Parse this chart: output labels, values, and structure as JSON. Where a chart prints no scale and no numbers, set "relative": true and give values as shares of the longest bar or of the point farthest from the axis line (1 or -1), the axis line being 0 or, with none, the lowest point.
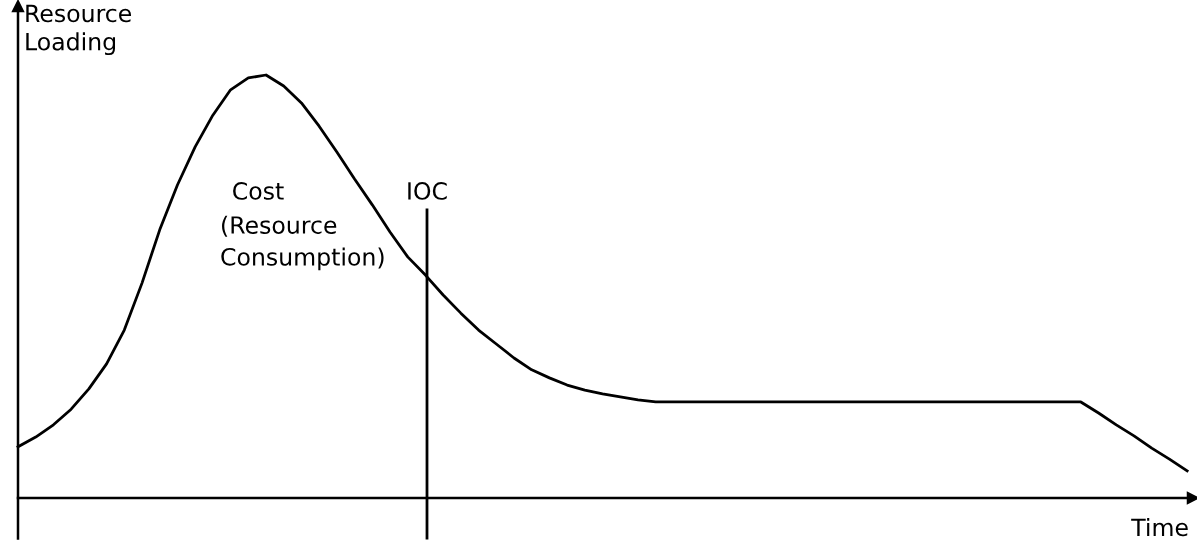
{
  "chart_data": {
    "type": "line",
    "relative": true,
    "xlabel": "Time",
    "ylabel": "Resource\nLoading",
    "categories": [
      null,
      null,
      null,
      null,
      null,
      null,
      null,
      null,
      null,
      null,
      null,
      null,
      null,
      null,
      null,
      null,
      null,
      null,
      null,
      null,
      null,
      null,
      null,
      null,
      null,
      null,
      null,
      null,
      null,
      null,
      null,
      null,
      null,
      null,
      null,
      null,
      null,
      null,
      null,
      null,
      null,
      null,
      null,
      null,
      null,
      null,
      null,
      null,
      null,
      null,
      null,
      null,
      null,
      null,
      null,
      null,
      null,
      null,
      null,
      null,
      null,
      null,
      null,
      null,
      null,
      null,
      null
    ],
    "series": [
      {
        "color": "#000000",
        "values": [
          0.121,
          0.144,
          0.173,
          0.21,
          0.258,
          0.317,
          0.397,
          0.508,
          0.634,
          0.74,
          0.83,
          0.905,
          0.965,
          0.993,
          1.0,
          0.974,
          0.934,
          0.879,
          0.818,
          0.754,
          0.693,
          0.629,
          0.57,
          0.527,
          0.48,
          0.437,
          0.397,
          0.364,
          0.331,
          0.303,
          0.284,
          0.267,
          0.255,
          0.246,
          0.239,
          0.232,
          0.227,
          0.227,
          0.227,
          0.227,
          0.227,
          0.227,
          0.227,
          0.227,
          0.227,
          0.227,
          0.227,
          0.227,
          0.227,
          0.227,
          0.227,
          0.227,
          0.227,
          0.227,
          0.227,
          0.227,
          0.227,
          0.227,
          0.227,
          0.227,
          0.227,
          0.201,
          0.173,
          0.147,
          0.118,
          0.092,
          0.064
        ]
      }
    ],
    "annotations": [
      "Cost",
      "(Resource\nConsumption)",
      "IOC"
    ],
    "marker": "none",
    "line_style": "solid",
    "legend": false
  }
}
